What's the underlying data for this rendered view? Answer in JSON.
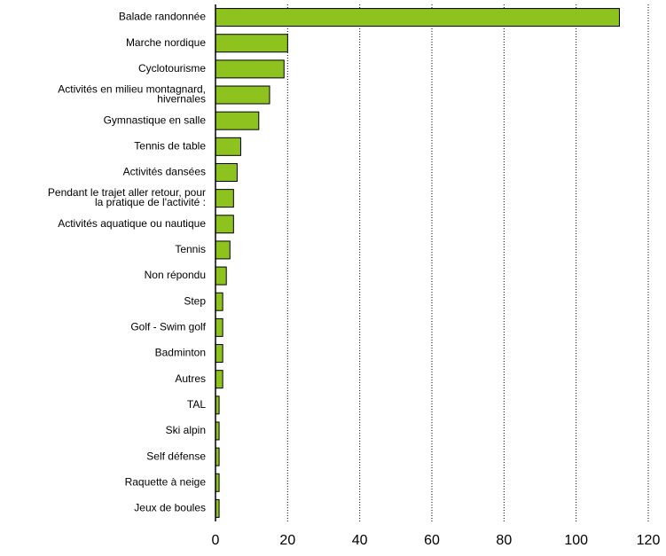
{
  "chart_data": {
    "type": "barh",
    "categories": [
      "Balade randonnée",
      "Marche nordique",
      "Cyclotourisme",
      "Activités en milieu montagnard,\nhivernales",
      "Gymnastique en salle",
      "Tennis de table",
      "Activités dansées",
      "Pendant le trajet aller retour, pour\nla pratique de l'activité :",
      "Activités aquatique ou nautique",
      "Tennis",
      "Non répondu",
      "Step",
      "Golf - Swim golf",
      "Badminton",
      "Autres",
      "TAL",
      "Ski alpin",
      "Self défense",
      "Raquette à neige",
      "Jeux de boules"
    ],
    "values": [
      112,
      20,
      19,
      15,
      12,
      7,
      6,
      5,
      5,
      4,
      3,
      2,
      2,
      2,
      2,
      1,
      1,
      1,
      1,
      1
    ],
    "color": "#8dc21f",
    "xlim": [
      0,
      120
    ],
    "xticks": [
      0,
      20,
      40,
      60,
      80,
      100,
      120
    ],
    "grid": true
  }
}
